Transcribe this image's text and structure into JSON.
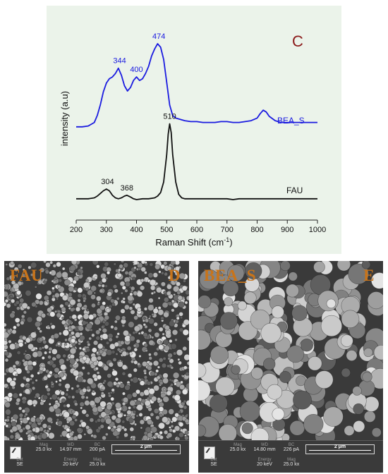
{
  "raman": {
    "panel_label": "C",
    "ylabel": "intensity (a.u)",
    "xlabel_prefix": "Raman Shift (cm",
    "xlabel_sup": "-1",
    "xlabel_suffix": ")",
    "colors": {
      "bea": "#1a1ae0",
      "fau": "#111111",
      "panel_label": "#8b1a1a",
      "background": "#ebf3ea"
    }
  },
  "chart_data": {
    "type": "line",
    "xlabel": "Raman Shift (cm-1)",
    "ylabel": "intensity (a.u)",
    "xlim": [
      200,
      1000
    ],
    "xticks": [
      200,
      300,
      400,
      500,
      600,
      700,
      800,
      900,
      1000
    ],
    "grid": false,
    "legend": "inline labels at right",
    "series": [
      {
        "name": "BEA_S",
        "color": "#1a1ae0",
        "x": [
          200,
          220,
          240,
          260,
          270,
          280,
          290,
          300,
          310,
          320,
          330,
          340,
          350,
          360,
          370,
          380,
          390,
          400,
          410,
          420,
          430,
          440,
          450,
          460,
          470,
          480,
          490,
          500,
          510,
          520,
          530,
          540,
          550,
          560,
          580,
          600,
          620,
          640,
          660,
          680,
          700,
          720,
          740,
          760,
          780,
          800,
          810,
          820,
          830,
          840,
          860,
          880,
          900,
          920,
          940,
          960,
          980,
          1000
        ],
        "y": [
          5,
          5,
          6,
          10,
          18,
          30,
          45,
          55,
          60,
          62,
          66,
          72,
          64,
          52,
          46,
          50,
          58,
          62,
          58,
          60,
          66,
          74,
          86,
          94,
          100,
          96,
          82,
          56,
          30,
          18,
          15,
          14,
          13,
          12,
          11,
          11,
          10,
          10,
          10,
          11,
          11,
          10,
          10,
          11,
          12,
          15,
          20,
          24,
          22,
          17,
          12,
          10,
          10,
          10,
          10,
          10,
          10,
          10
        ]
      },
      {
        "name": "FAU",
        "color": "#111111",
        "x": [
          200,
          220,
          240,
          260,
          270,
          280,
          290,
          300,
          310,
          320,
          330,
          340,
          350,
          360,
          368,
          380,
          390,
          400,
          420,
          440,
          460,
          470,
          480,
          490,
          500,
          505,
          510,
          515,
          520,
          530,
          540,
          550,
          560,
          580,
          600,
          650,
          700,
          720,
          740,
          800,
          850,
          900,
          950,
          1000
        ],
        "y": [
          5,
          5,
          5,
          6,
          8,
          11,
          14,
          16,
          14,
          9,
          6,
          5,
          6,
          8,
          9,
          7,
          5,
          4,
          5,
          5,
          6,
          8,
          12,
          24,
          55,
          78,
          90,
          80,
          55,
          24,
          10,
          6,
          5,
          5,
          5,
          5,
          5,
          4,
          5,
          5,
          5,
          5,
          5,
          5
        ]
      }
    ],
    "annotations": [
      {
        "text": "344",
        "x": 344,
        "series": "BEA_S"
      },
      {
        "text": "400",
        "x": 400,
        "series": "BEA_S"
      },
      {
        "text": "474",
        "x": 474,
        "series": "BEA_S"
      },
      {
        "text": "510",
        "x": 510,
        "series": "FAU"
      },
      {
        "text": "304",
        "x": 304,
        "series": "FAU"
      },
      {
        "text": "368",
        "x": 368,
        "series": "FAU"
      }
    ]
  },
  "sem": {
    "fau": {
      "corner_left": "FAU",
      "corner_right": "D",
      "mag_label": "Mag",
      "mag": "25.0 kx",
      "wd_label": "WD",
      "wd": "14.97 mm",
      "bc_label": "BC",
      "bc": "200 pA",
      "det_label": "Det",
      "det": "SE",
      "energy_label": "Energy",
      "energy": "20 keV",
      "mag2_label": "Mag",
      "mag2": "25.0 kx",
      "scale": "2 μm"
    },
    "bea": {
      "corner_left": "BEA_S",
      "corner_right": "E",
      "mag_label": "Mag",
      "mag": "25.0 kx",
      "wd_label": "WD",
      "wd": "14.80 mm",
      "bc_label": "BC",
      "bc": "226 pA",
      "det_label": "Det",
      "det": "SE",
      "energy_label": "Energy",
      "energy": "20 keV",
      "mag2_label": "Mag",
      "mag2": "25.0 kx",
      "scale": "2 μm"
    },
    "label_color": "#c8741a"
  }
}
